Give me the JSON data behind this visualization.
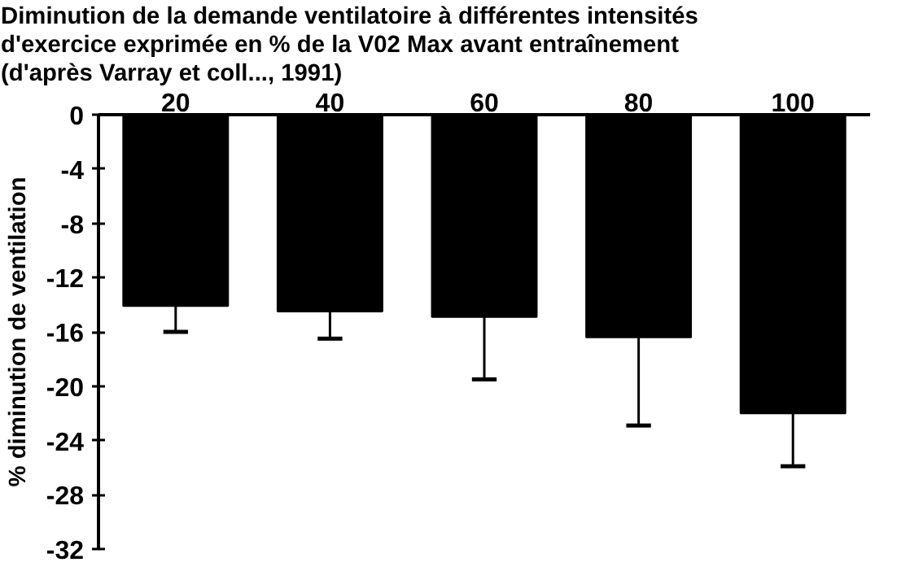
{
  "chart_data": {
    "type": "bar",
    "title": "Diminution de la demande ventilatoire à différentes intensités\nd'exercice exprimée en % de la V02 Max avant entraînement\n(d'après Varray et coll..., 1991)",
    "ylabel": "% diminution de ventilation",
    "categories": [
      "20",
      "40",
      "60",
      "80",
      "100"
    ],
    "values": [
      -14.1,
      -14.5,
      -14.9,
      -16.4,
      -22.0
    ],
    "errors": [
      [
        -16.0,
        -14.1
      ],
      [
        -16.5,
        -14.5
      ],
      [
        -19.5,
        -14.9
      ],
      [
        -22.9,
        -16.4
      ],
      [
        -25.9,
        -22.0
      ]
    ],
    "color": "#000000",
    "ylim": [
      -32,
      0
    ],
    "yticks": [
      0,
      -4,
      -8,
      -12,
      -16,
      -20,
      -24,
      -28,
      -32
    ],
    "grid": false
  }
}
